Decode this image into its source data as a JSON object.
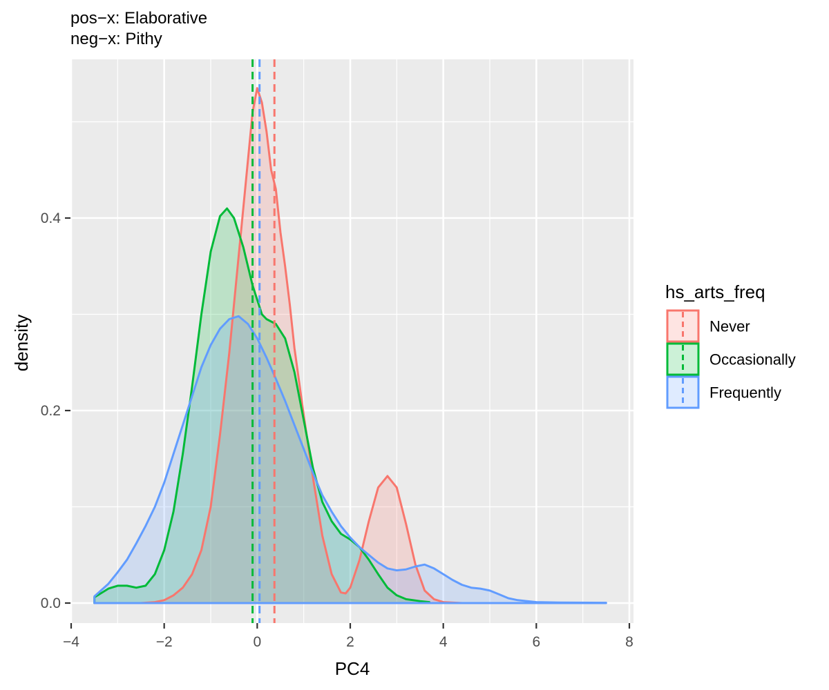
{
  "chart_data": {
    "type": "area",
    "title": "pos−x: Elaborative",
    "subtitle": "neg−x: Pithy",
    "xlabel": "PC4",
    "ylabel": "density",
    "xlim": [
      -4,
      8
    ],
    "ylim": [
      -0.025,
      0.565
    ],
    "x_ticks": [
      -4,
      -2,
      0,
      2,
      4,
      6,
      8
    ],
    "x_tick_labels": [
      "−4",
      "−2",
      "0",
      "2",
      "4",
      "6",
      "8"
    ],
    "y_ticks": [
      0.0,
      0.2,
      0.4
    ],
    "y_tick_labels": [
      "0.0",
      "0.2",
      "0.4"
    ],
    "grid": true,
    "legend": {
      "title": "hs_arts_freq",
      "position": "right"
    },
    "series": [
      {
        "name": "Never",
        "color": "#F8766D",
        "mean": 0.37,
        "points": [
          [
            -3.5,
            0
          ],
          [
            -2.5,
            0
          ],
          [
            -2.2,
            0.001
          ],
          [
            -2,
            0.003
          ],
          [
            -1.8,
            0.008
          ],
          [
            -1.6,
            0.016
          ],
          [
            -1.4,
            0.03
          ],
          [
            -1.2,
            0.055
          ],
          [
            -1,
            0.1
          ],
          [
            -0.8,
            0.175
          ],
          [
            -0.6,
            0.26
          ],
          [
            -0.4,
            0.36
          ],
          [
            -0.2,
            0.46
          ],
          [
            -0.1,
            0.51
          ],
          [
            0,
            0.535
          ],
          [
            0.1,
            0.52
          ],
          [
            0.2,
            0.49
          ],
          [
            0.3,
            0.45
          ],
          [
            0.4,
            0.43
          ],
          [
            0.5,
            0.385
          ],
          [
            0.6,
            0.35
          ],
          [
            0.7,
            0.31
          ],
          [
            0.8,
            0.265
          ],
          [
            1,
            0.195
          ],
          [
            1.2,
            0.13
          ],
          [
            1.4,
            0.07
          ],
          [
            1.6,
            0.03
          ],
          [
            1.8,
            0.011
          ],
          [
            1.9,
            0.01
          ],
          [
            2,
            0.016
          ],
          [
            2.2,
            0.045
          ],
          [
            2.4,
            0.085
          ],
          [
            2.6,
            0.12
          ],
          [
            2.8,
            0.132
          ],
          [
            3,
            0.12
          ],
          [
            3.2,
            0.082
          ],
          [
            3.4,
            0.04
          ],
          [
            3.6,
            0.013
          ],
          [
            3.8,
            0.004
          ],
          [
            4,
            0.001
          ],
          [
            4.4,
            0
          ]
        ]
      },
      {
        "name": "Occasionally",
        "color": "#00BA38",
        "mean": -0.1,
        "points": [
          [
            -3.5,
            0.006
          ],
          [
            -3.2,
            0.015
          ],
          [
            -3,
            0.018
          ],
          [
            -2.8,
            0.018
          ],
          [
            -2.6,
            0.016
          ],
          [
            -2.4,
            0.018
          ],
          [
            -2.2,
            0.03
          ],
          [
            -2,
            0.055
          ],
          [
            -1.8,
            0.095
          ],
          [
            -1.6,
            0.155
          ],
          [
            -1.4,
            0.225
          ],
          [
            -1.2,
            0.3
          ],
          [
            -1,
            0.365
          ],
          [
            -0.8,
            0.402
          ],
          [
            -0.65,
            0.41
          ],
          [
            -0.5,
            0.4
          ],
          [
            -0.3,
            0.37
          ],
          [
            -0.1,
            0.33
          ],
          [
            0.1,
            0.3
          ],
          [
            0.2,
            0.295
          ],
          [
            0.4,
            0.29
          ],
          [
            0.6,
            0.275
          ],
          [
            0.8,
            0.24
          ],
          [
            1,
            0.19
          ],
          [
            1.2,
            0.14
          ],
          [
            1.4,
            0.105
          ],
          [
            1.6,
            0.085
          ],
          [
            1.8,
            0.072
          ],
          [
            2,
            0.066
          ],
          [
            2.2,
            0.058
          ],
          [
            2.4,
            0.045
          ],
          [
            2.6,
            0.03
          ],
          [
            2.8,
            0.016
          ],
          [
            3,
            0.008
          ],
          [
            3.2,
            0.004
          ],
          [
            3.5,
            0.002
          ],
          [
            3.7,
            0.001
          ]
        ]
      },
      {
        "name": "Frequently",
        "color": "#619CFF",
        "mean": 0.05,
        "points": [
          [
            -3.5,
            0.007
          ],
          [
            -3.2,
            0.02
          ],
          [
            -3,
            0.032
          ],
          [
            -2.8,
            0.045
          ],
          [
            -2.6,
            0.062
          ],
          [
            -2.4,
            0.08
          ],
          [
            -2.2,
            0.1
          ],
          [
            -2,
            0.125
          ],
          [
            -1.8,
            0.155
          ],
          [
            -1.6,
            0.185
          ],
          [
            -1.4,
            0.215
          ],
          [
            -1.2,
            0.245
          ],
          [
            -1,
            0.268
          ],
          [
            -0.8,
            0.285
          ],
          [
            -0.6,
            0.295
          ],
          [
            -0.4,
            0.298
          ],
          [
            -0.2,
            0.29
          ],
          [
            0,
            0.275
          ],
          [
            0.2,
            0.255
          ],
          [
            0.4,
            0.233
          ],
          [
            0.6,
            0.21
          ],
          [
            0.8,
            0.185
          ],
          [
            1,
            0.16
          ],
          [
            1.2,
            0.135
          ],
          [
            1.4,
            0.112
          ],
          [
            1.6,
            0.095
          ],
          [
            1.8,
            0.08
          ],
          [
            2,
            0.068
          ],
          [
            2.2,
            0.058
          ],
          [
            2.4,
            0.05
          ],
          [
            2.6,
            0.042
          ],
          [
            2.8,
            0.036
          ],
          [
            3,
            0.034
          ],
          [
            3.2,
            0.035
          ],
          [
            3.4,
            0.038
          ],
          [
            3.6,
            0.04
          ],
          [
            3.8,
            0.036
          ],
          [
            4,
            0.03
          ],
          [
            4.2,
            0.024
          ],
          [
            4.4,
            0.019
          ],
          [
            4.6,
            0.016
          ],
          [
            4.8,
            0.015
          ],
          [
            5,
            0.013
          ],
          [
            5.2,
            0.009
          ],
          [
            5.4,
            0.005
          ],
          [
            5.6,
            0.003
          ],
          [
            6,
            0.001
          ],
          [
            6.5,
            0.0005
          ],
          [
            7.5,
            0.0003
          ]
        ]
      }
    ]
  }
}
